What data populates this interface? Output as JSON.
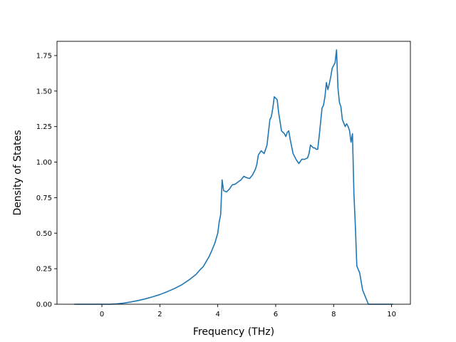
{
  "chart_data": {
    "type": "line",
    "title": "",
    "xlabel": "Frequency (THz)",
    "ylabel": "Density of States",
    "xlim": [
      -1.55,
      10.65
    ],
    "ylim": [
      0,
      1.85
    ],
    "xticks": [
      0,
      2,
      4,
      6,
      8,
      10
    ],
    "xtick_labels": [
      "0",
      "2",
      "4",
      "6",
      "8",
      "10"
    ],
    "yticks": [
      0.0,
      0.25,
      0.5,
      0.75,
      1.0,
      1.25,
      1.5,
      1.75
    ],
    "ytick_labels": [
      "0.00",
      "0.25",
      "0.50",
      "0.75",
      "1.00",
      "1.25",
      "1.50",
      "1.75"
    ],
    "grid": false,
    "legend": "none",
    "series_color": "#1f77b4",
    "series": [
      {
        "x": [
          -0.95,
          -0.5,
          0.0,
          0.25,
          0.5,
          0.75,
          1.0,
          1.25,
          1.5,
          1.75,
          2.0,
          2.25,
          2.5,
          2.75,
          3.0,
          3.25,
          3.4,
          3.5,
          3.6,
          3.7,
          3.8,
          3.9,
          4.0,
          4.05,
          4.1,
          4.15,
          4.2,
          4.3,
          4.4,
          4.5,
          4.6,
          4.7,
          4.8,
          4.9,
          5.0,
          5.1,
          5.2,
          5.3,
          5.35,
          5.4,
          5.5,
          5.6,
          5.7,
          5.8,
          5.85,
          5.9,
          5.95,
          6.0,
          6.05,
          6.1,
          6.2,
          6.3,
          6.35,
          6.4,
          6.45,
          6.5,
          6.6,
          6.7,
          6.8,
          6.9,
          7.0,
          7.1,
          7.15,
          7.2,
          7.3,
          7.35,
          7.4,
          7.45,
          7.5,
          7.55,
          7.6,
          7.65,
          7.7,
          7.75,
          7.8,
          7.85,
          7.9,
          7.95,
          8.0,
          8.05,
          8.1,
          8.15,
          8.2,
          8.25,
          8.3,
          8.4,
          8.45,
          8.5,
          8.55,
          8.6,
          8.65,
          8.7,
          8.75,
          8.8,
          8.9,
          9.0,
          9.1,
          9.2,
          9.5,
          10.0,
          10.05
        ],
        "y": [
          0.0,
          0.0,
          0.0,
          0.0,
          0.002,
          0.008,
          0.016,
          0.026,
          0.038,
          0.052,
          0.068,
          0.088,
          0.11,
          0.136,
          0.17,
          0.21,
          0.245,
          0.265,
          0.3,
          0.335,
          0.38,
          0.43,
          0.5,
          0.58,
          0.63,
          0.875,
          0.8,
          0.79,
          0.81,
          0.84,
          0.845,
          0.86,
          0.875,
          0.9,
          0.89,
          0.885,
          0.91,
          0.95,
          0.985,
          1.05,
          1.08,
          1.06,
          1.12,
          1.3,
          1.32,
          1.38,
          1.46,
          1.45,
          1.44,
          1.35,
          1.22,
          1.2,
          1.18,
          1.21,
          1.22,
          1.16,
          1.06,
          1.02,
          0.99,
          1.02,
          1.02,
          1.03,
          1.06,
          1.12,
          1.1,
          1.1,
          1.09,
          1.09,
          1.18,
          1.28,
          1.38,
          1.4,
          1.46,
          1.56,
          1.51,
          1.55,
          1.6,
          1.66,
          1.68,
          1.7,
          1.79,
          1.52,
          1.42,
          1.39,
          1.3,
          1.25,
          1.27,
          1.25,
          1.22,
          1.14,
          1.2,
          0.78,
          0.55,
          0.27,
          0.22,
          0.1,
          0.05,
          0.0,
          0.0,
          0.0,
          0.0
        ]
      }
    ]
  }
}
